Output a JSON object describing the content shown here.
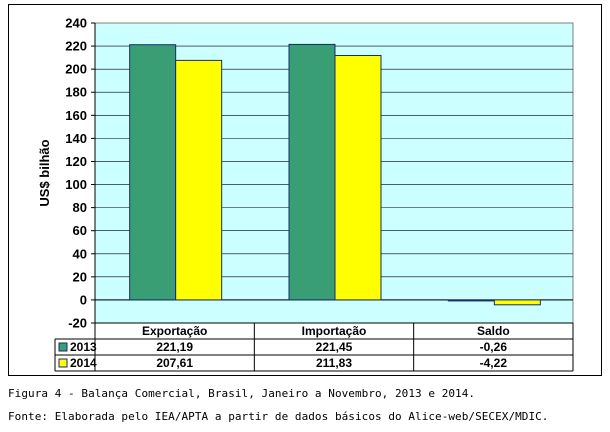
{
  "chart_data": {
    "type": "bar",
    "ylabel": "US$ bilhão",
    "ylim": [
      -20,
      240
    ],
    "yticks": [
      -20,
      0,
      20,
      40,
      60,
      80,
      100,
      120,
      140,
      160,
      180,
      200,
      220,
      240
    ],
    "categories": [
      "Exportação",
      "Importação",
      "Saldo"
    ],
    "series": [
      {
        "name": "2013",
        "values": [
          221.19,
          221.45,
          -0.26
        ],
        "labels": [
          "221,19",
          "221,45",
          "-0,26"
        ],
        "color": "#3a9e74"
      },
      {
        "name": "2014",
        "values": [
          207.61,
          211.83,
          -4.22
        ],
        "labels": [
          "207,61",
          "211,83",
          "-4,22"
        ],
        "color": "#ffff00"
      }
    ],
    "plot_background": "#ccffff",
    "grid": true,
    "legend": "data-table"
  },
  "caption": {
    "figure": "Figura 4 - Balança Comercial, Brasil, Janeiro a Novembro, 2013 e 2014.",
    "source": "Fonte: Elaborada pelo IEA/APTA a partir de dados básicos do Alice-web/SECEX/MDIC."
  }
}
